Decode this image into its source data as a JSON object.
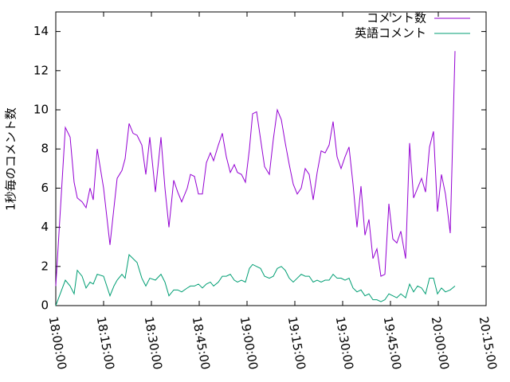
{
  "chart_data": {
    "type": "line",
    "ylabel": "1秒毎のコメント数",
    "x": [
      "18:00:00",
      "18:03:00",
      "18:04:30",
      "18:05:45",
      "18:06:45",
      "18:08:15",
      "18:09:30",
      "18:10:45",
      "18:11:45",
      "18:13:00",
      "18:15:00",
      "18:17:00",
      "18:18:15",
      "18:19:15",
      "18:20:45",
      "18:21:45",
      "18:23:00",
      "18:24:15",
      "18:25:30",
      "18:27:00",
      "18:28:15",
      "18:29:30",
      "18:31:15",
      "18:33:00",
      "18:34:15",
      "18:35:30",
      "18:37:00",
      "18:38:15",
      "18:39:30",
      "18:41:15",
      "18:42:15",
      "18:43:30",
      "18:44:45",
      "18:46:00",
      "18:47:15",
      "18:48:30",
      "18:49:30",
      "18:51:00",
      "18:52:15",
      "18:53:30",
      "18:54:45",
      "18:56:00",
      "18:57:00",
      "18:58:15",
      "18:59:30",
      "19:00:45",
      "19:01:45",
      "19:03:00",
      "19:04:15",
      "19:05:30",
      "19:07:00",
      "19:08:15",
      "19:09:30",
      "19:10:45",
      "19:12:00",
      "19:13:15",
      "19:14:30",
      "19:15:45",
      "19:17:00",
      "19:18:15",
      "19:19:30",
      "19:20:45",
      "19:22:00",
      "19:23:15",
      "19:24:30",
      "19:25:45",
      "19:27:00",
      "19:28:15",
      "19:29:30",
      "19:30:45",
      "19:32:00",
      "19:33:15",
      "19:34:30",
      "19:35:45",
      "19:37:00",
      "19:38:15",
      "19:39:30",
      "19:40:45",
      "19:42:00",
      "19:43:15",
      "19:44:30",
      "19:45:45",
      "19:47:00",
      "19:48:15",
      "19:49:45",
      "19:51:00",
      "19:52:15",
      "19:53:30",
      "19:54:45",
      "19:56:00",
      "19:57:15",
      "19:58:30",
      "19:59:45",
      "20:01:00",
      "20:02:15",
      "20:03:45",
      "20:05:15"
    ],
    "series": [
      {
        "name": "コメント数",
        "color": "#9400d3",
        "values": [
          1.0,
          9.1,
          8.6,
          6.3,
          5.5,
          5.3,
          5.0,
          6.0,
          5.4,
          8.0,
          6.0,
          3.1,
          5.0,
          6.5,
          6.9,
          7.5,
          9.3,
          8.8,
          8.7,
          8.2,
          6.7,
          8.6,
          5.8,
          8.6,
          6.0,
          4.0,
          6.4,
          5.8,
          5.3,
          6.0,
          6.7,
          6.6,
          5.7,
          5.7,
          7.3,
          7.8,
          7.4,
          8.2,
          8.8,
          7.6,
          6.8,
          7.2,
          6.8,
          6.7,
          6.3,
          8.0,
          9.8,
          9.9,
          8.5,
          7.1,
          6.7,
          8.5,
          10.0,
          9.5,
          8.3,
          7.2,
          6.2,
          5.7,
          6.0,
          7.0,
          6.7,
          5.4,
          6.8,
          7.9,
          7.8,
          8.2,
          9.4,
          7.6,
          7.0,
          7.6,
          8.1,
          6.2,
          4.0,
          6.1,
          3.6,
          4.4,
          2.4,
          2.9,
          1.5,
          1.6,
          5.2,
          3.4,
          3.2,
          3.8,
          2.4,
          8.3,
          5.5,
          6.0,
          6.5,
          5.8,
          8.1,
          8.9,
          4.8,
          6.7,
          5.7,
          3.7,
          13.0
        ]
      },
      {
        "name": "英語コメント",
        "color": "#009e73",
        "values": [
          0.0,
          1.3,
          1.0,
          0.6,
          1.8,
          1.5,
          0.9,
          1.2,
          1.1,
          1.6,
          1.5,
          0.5,
          1.0,
          1.3,
          1.6,
          1.4,
          2.6,
          2.4,
          2.2,
          1.4,
          1.0,
          1.4,
          1.3,
          1.6,
          1.2,
          0.5,
          0.8,
          0.8,
          0.7,
          0.9,
          1.0,
          1.0,
          1.1,
          0.9,
          1.1,
          1.2,
          1.0,
          1.2,
          1.5,
          1.5,
          1.6,
          1.3,
          1.2,
          1.3,
          1.2,
          1.9,
          2.1,
          2.0,
          1.9,
          1.5,
          1.4,
          1.5,
          1.9,
          2.0,
          1.8,
          1.4,
          1.2,
          1.4,
          1.6,
          1.5,
          1.5,
          1.2,
          1.3,
          1.2,
          1.3,
          1.3,
          1.6,
          1.4,
          1.4,
          1.3,
          1.4,
          0.9,
          0.7,
          0.8,
          0.5,
          0.6,
          0.3,
          0.3,
          0.2,
          0.3,
          0.6,
          0.5,
          0.4,
          0.6,
          0.4,
          1.1,
          0.7,
          1.0,
          0.9,
          0.6,
          1.4,
          1.4,
          0.6,
          0.9,
          0.7,
          0.8,
          1.0
        ]
      }
    ],
    "xlim": [
      "18:00:00",
      "20:15:00"
    ],
    "xticks": [
      "18:00:00",
      "18:15:00",
      "18:30:00",
      "18:45:00",
      "19:00:00",
      "19:15:00",
      "19:30:00",
      "19:45:00",
      "20:00:00",
      "20:15:00"
    ],
    "ylim": [
      0,
      15
    ],
    "yticks": [
      0,
      2,
      4,
      6,
      8,
      10,
      12,
      14
    ],
    "legend": "top right"
  }
}
